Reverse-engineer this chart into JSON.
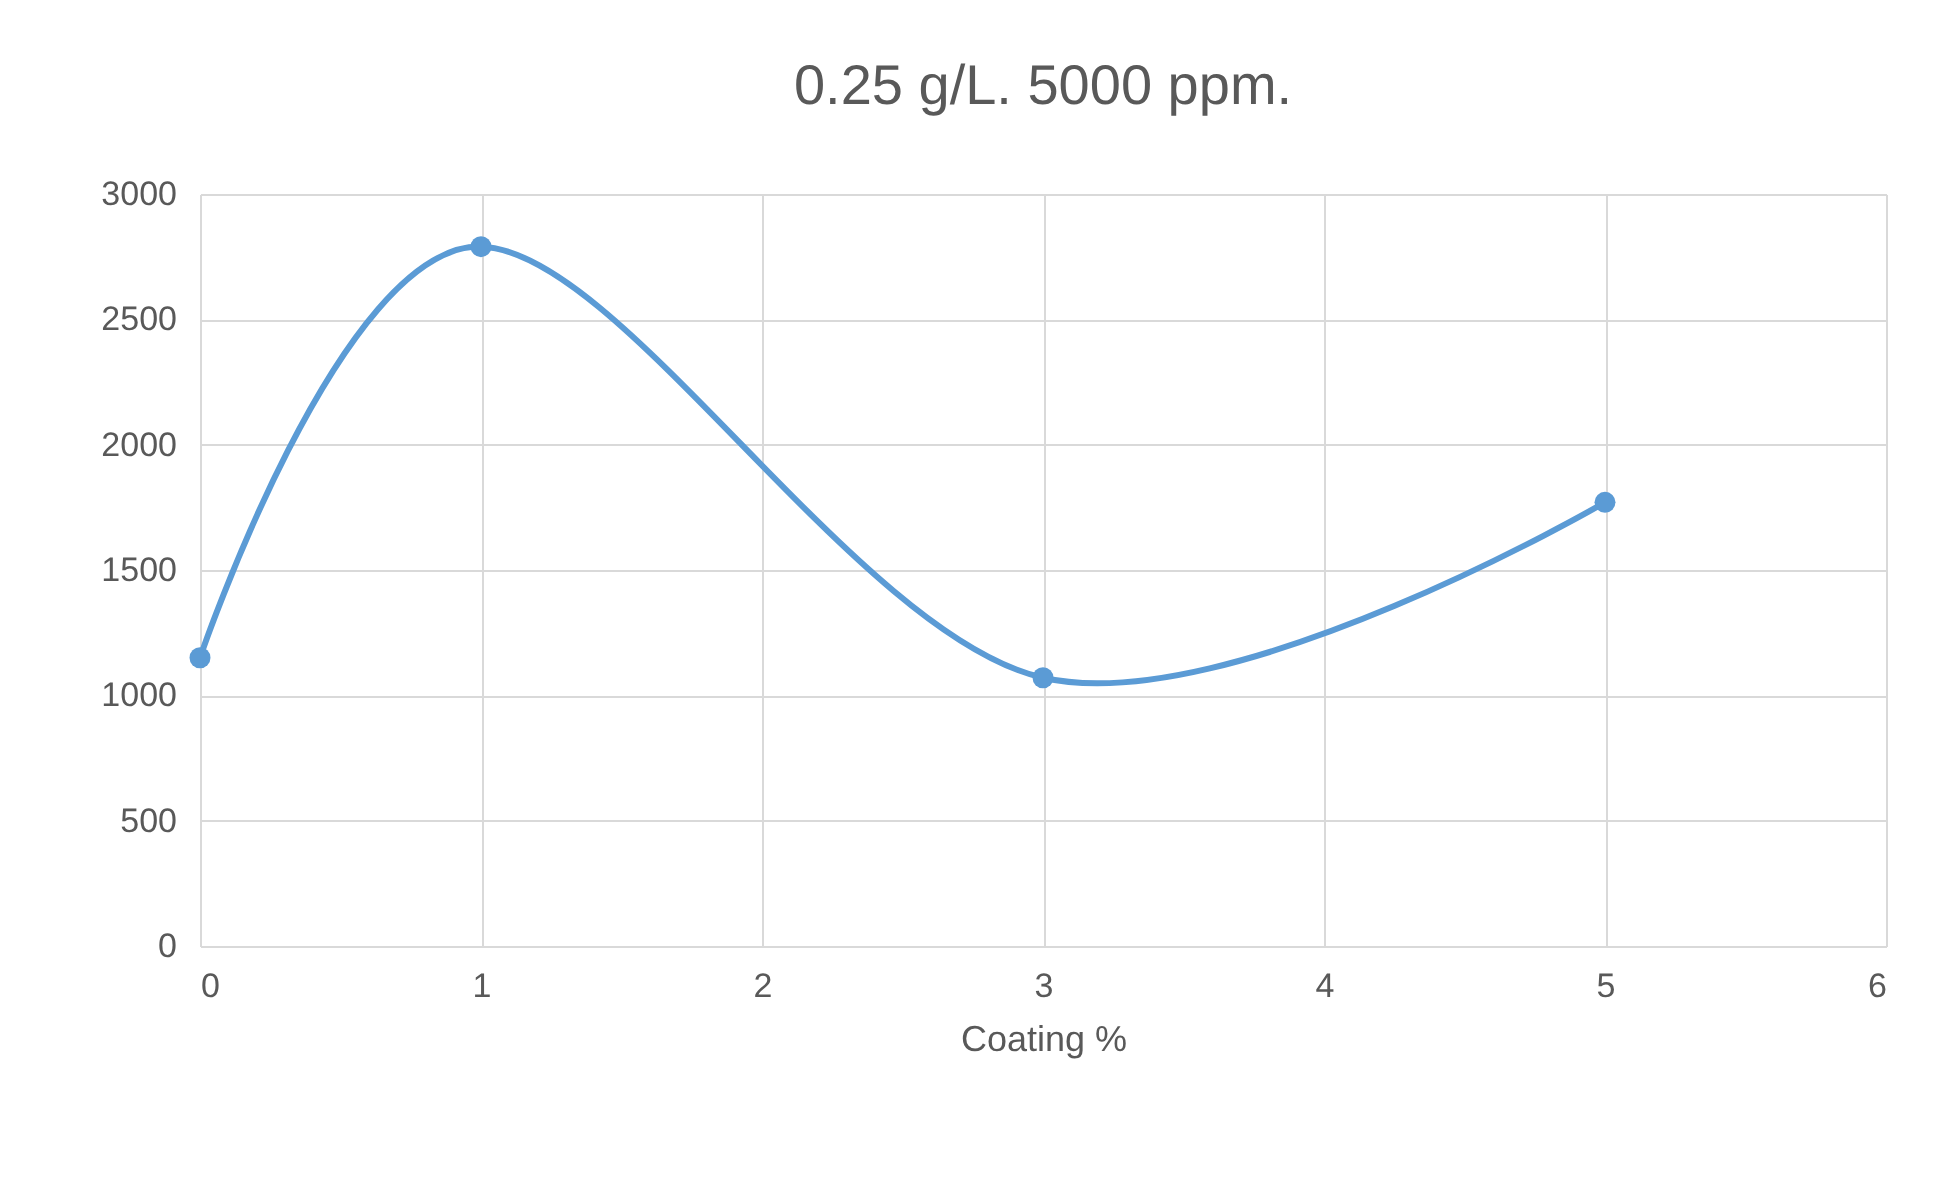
{
  "chart_data": {
    "type": "line",
    "title": "0.25 g/L. 5000 ppm.",
    "xlabel": "Coating %",
    "x": [
      0,
      1,
      3,
      5
    ],
    "series": [
      {
        "color": "#5b9bd5",
        "values": [
          1150,
          2790,
          1070,
          1770
        ]
      }
    ],
    "xlim": [
      0,
      6
    ],
    "xticks": [
      0,
      1,
      2,
      3,
      4,
      5,
      6
    ],
    "ylim": [
      0,
      3000
    ],
    "yticks": [
      0,
      500,
      1000,
      1500,
      2000,
      2500,
      3000
    ],
    "grid": true,
    "marker": "circle",
    "line_style": "solid"
  }
}
